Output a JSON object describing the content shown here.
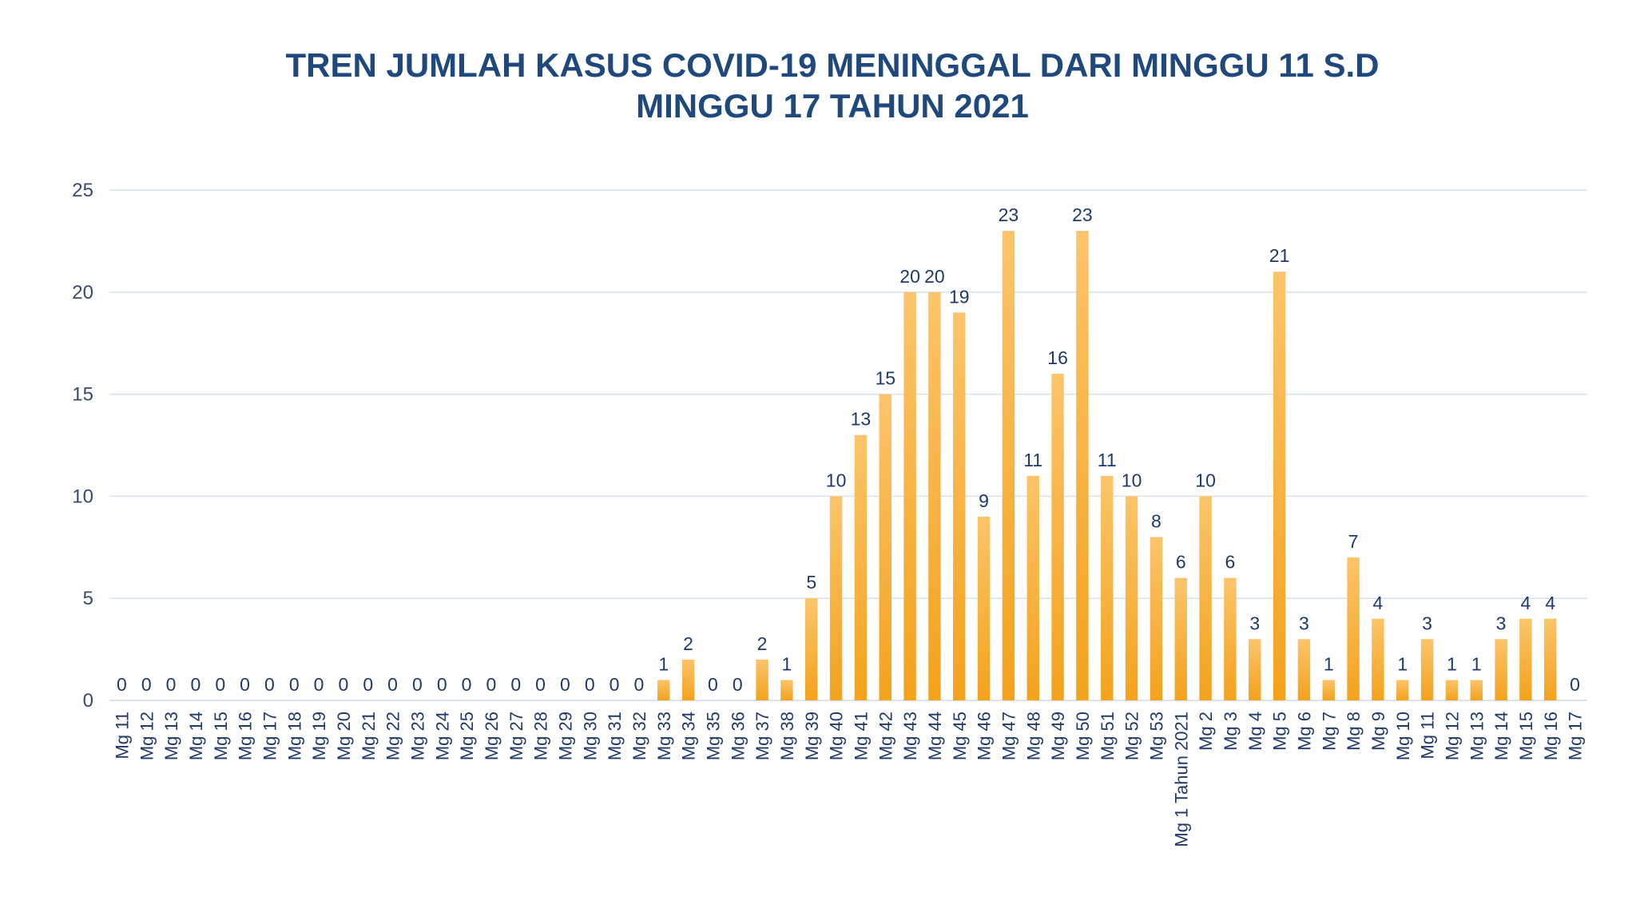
{
  "chart_data": {
    "type": "bar",
    "title_lines": [
      "TREN JUMLAH KASUS COVID-19 MENINGGAL DARI MINGGU 11 S.D",
      "MINGGU 17 TAHUN 2021"
    ],
    "xlabel": "",
    "ylabel": "",
    "ylim": [
      0,
      25
    ],
    "yticks": [
      "0",
      "5",
      "10",
      "15",
      "20",
      "25"
    ],
    "grid": true,
    "legend": "none",
    "colors": {
      "bar_top": "#fcc46a",
      "bar_bottom": "#f3a21c",
      "title": "#1f497d",
      "label": "#1f3a68",
      "grid": "#d6e3ee"
    },
    "categories": [
      "Mg 11",
      "Mg 12",
      "Mg 13",
      "Mg 14",
      "Mg 15",
      "Mg 16",
      "Mg 17",
      "Mg 18",
      "Mg 19",
      "Mg 20",
      "Mg 21",
      "Mg 22",
      "Mg 23",
      "Mg 24",
      "Mg 25",
      "Mg 26",
      "Mg 27",
      "Mg 28",
      "Mg 29",
      "Mg 30",
      "Mg 31",
      "Mg 32",
      "Mg 33",
      "Mg 34",
      "Mg 35",
      "Mg 36",
      "Mg 37",
      "Mg 38",
      "Mg 39",
      "Mg 40",
      "Mg 41",
      "Mg 42",
      "Mg 43",
      "Mg 44",
      "Mg 45",
      "Mg 46",
      "Mg 47",
      "Mg 48",
      "Mg 49",
      "Mg 50",
      "Mg 51",
      "Mg 52",
      "Mg 53",
      "Mg 1 Tahun 2021",
      "Mg 2",
      "Mg 3",
      "Mg 4",
      "Mg 5",
      "Mg 6",
      "Mg 7",
      "Mg 8",
      "Mg 9",
      "Mg 10",
      "Mg 11",
      "Mg 12",
      "Mg 13",
      "Mg 14",
      "Mg 15",
      "Mg 16",
      "Mg 17"
    ],
    "values": [
      0,
      0,
      0,
      0,
      0,
      0,
      0,
      0,
      0,
      0,
      0,
      0,
      0,
      0,
      0,
      0,
      0,
      0,
      0,
      0,
      0,
      0,
      1,
      2,
      0,
      0,
      2,
      1,
      5,
      10,
      13,
      15,
      20,
      20,
      19,
      9,
      23,
      11,
      16,
      23,
      11,
      10,
      8,
      6,
      10,
      6,
      3,
      21,
      3,
      1,
      7,
      4,
      1,
      3,
      1,
      1,
      3,
      4,
      4,
      0
    ]
  }
}
